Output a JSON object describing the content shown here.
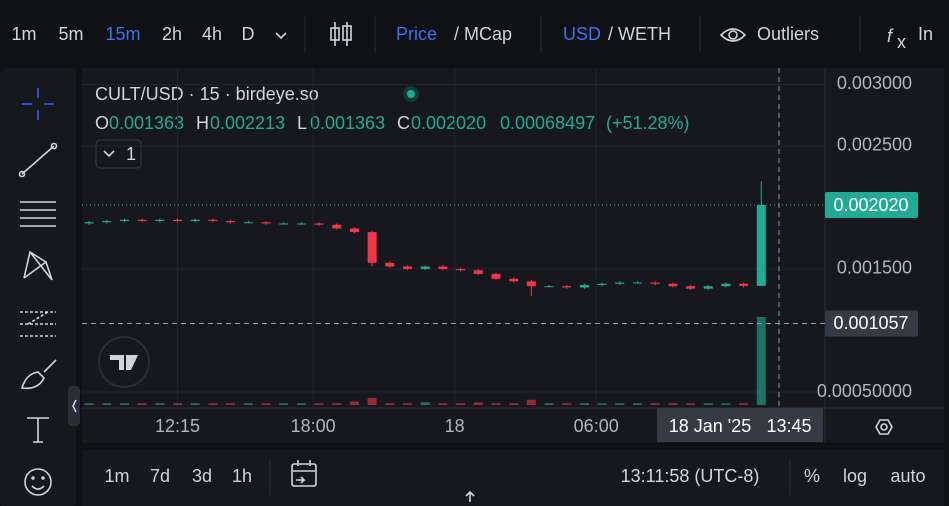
{
  "toolbar": {
    "intervals": [
      "1m",
      "5m",
      "15m",
      "2h",
      "4h",
      "D"
    ],
    "price": "Price",
    "mcap": "/ MCap",
    "usd": "USD",
    "weth": "/ WETH",
    "outliers": "Outliers",
    "indicators": "In"
  },
  "chart_data": {
    "type": "candlestick",
    "title": "CULT/USD · 15 · birdeye.so",
    "legend": {
      "o": "O",
      "open": 0.001363,
      "h": "H",
      "high": 0.002213,
      "l": "L",
      "low": 0.001363,
      "c": "C",
      "close": 0.00202,
      "close_label": "0.002020",
      "change": 0.00068497,
      "change_percent": {
        "value": 51.28,
        "label": "(+51.28%)"
      }
    },
    "collapse": "1",
    "x": [
      8.5,
      9.25,
      10,
      10.75,
      11.5,
      12.25,
      13,
      13.75,
      14.5,
      15.25,
      16,
      16.75,
      17.5,
      18.25,
      19,
      19.75,
      20.5,
      21.25,
      22,
      22.75,
      23.5,
      24.25,
      25,
      25.75,
      26.5,
      27.25,
      28,
      28.75,
      29.5,
      30.25,
      31,
      31.75,
      32.5,
      33.25,
      34,
      34.75,
      35.5,
      36.25,
      37
    ],
    "open": [
      0.00187,
      0.00188,
      0.00189,
      0.0019,
      0.00189,
      0.0019,
      0.00189,
      0.0019,
      0.00189,
      0.00188,
      0.00188,
      0.00187,
      0.00187,
      0.00187,
      0.00186,
      0.00183,
      0.0018,
      0.00155,
      0.00152,
      0.0015,
      0.00152,
      0.0015,
      0.00149,
      0.00146,
      0.00142,
      0.0014,
      0.00136,
      0.00136,
      0.00135,
      0.00137,
      0.00138,
      0.00139,
      0.00139,
      0.00138,
      0.00136,
      0.00134,
      0.00136,
      0.00138,
      0.001363
    ],
    "high": [
      0.00189,
      0.0019,
      0.00191,
      0.00191,
      0.00191,
      0.00191,
      0.00191,
      0.00191,
      0.0019,
      0.00189,
      0.00189,
      0.00188,
      0.00188,
      0.00188,
      0.00187,
      0.00184,
      0.00181,
      0.00156,
      0.00153,
      0.00153,
      0.00153,
      0.00151,
      0.0015,
      0.00147,
      0.00143,
      0.00141,
      0.00137,
      0.00137,
      0.00138,
      0.00139,
      0.0014,
      0.0014,
      0.0014,
      0.00139,
      0.00137,
      0.00137,
      0.00139,
      0.00139,
      0.002213
    ],
    "low": [
      0.00186,
      0.00187,
      0.00188,
      0.00188,
      0.00188,
      0.00188,
      0.00188,
      0.00188,
      0.00187,
      0.00187,
      0.00186,
      0.00186,
      0.00186,
      0.00185,
      0.00182,
      0.00179,
      0.00152,
      0.00151,
      0.00149,
      0.00149,
      0.00149,
      0.00148,
      0.00145,
      0.00141,
      0.00139,
      0.00128,
      0.00135,
      0.00134,
      0.00134,
      0.00136,
      0.00137,
      0.00138,
      0.00137,
      0.00135,
      0.00133,
      0.00133,
      0.00135,
      0.00135,
      0.001363
    ],
    "close": [
      0.00188,
      0.00189,
      0.0019,
      0.00189,
      0.0019,
      0.00189,
      0.0019,
      0.00189,
      0.00188,
      0.00188,
      0.00187,
      0.00187,
      0.00187,
      0.00186,
      0.00183,
      0.0018,
      0.00155,
      0.00152,
      0.0015,
      0.00152,
      0.0015,
      0.00149,
      0.00146,
      0.00142,
      0.0014,
      0.00136,
      0.00136,
      0.00135,
      0.00137,
      0.00138,
      0.00139,
      0.00139,
      0.00138,
      0.00136,
      0.00134,
      0.00136,
      0.00138,
      0.001363,
      0.00202
    ],
    "volume": [
      2,
      2,
      2,
      2,
      2,
      2,
      2,
      2,
      2,
      2,
      2,
      2,
      2,
      2,
      2,
      4,
      8,
      2,
      2,
      3,
      2,
      2,
      3,
      2,
      2,
      6,
      2,
      2,
      2,
      2,
      2,
      2,
      2,
      2,
      2,
      2,
      2,
      2,
      100
    ],
    "xlim": [
      8.2,
      39.7
    ],
    "xticks": [
      {
        "value": 12.25,
        "label": "12:15"
      },
      {
        "value": 18,
        "label": "18:00"
      },
      {
        "value": 24,
        "label": "18"
      },
      {
        "value": 30,
        "label": "06:00"
      }
    ],
    "ylim": [
      0.00037,
      0.003134
    ],
    "yticks": [
      {
        "value": 0.003,
        "label": "0.003000"
      },
      {
        "value": 0.0025,
        "label": "0.002500"
      },
      {
        "value": 0.0015,
        "label": "0.001500"
      },
      {
        "value": 0.0005,
        "label": "0.00050000"
      }
    ],
    "last_price": {
      "value": 0.00202,
      "label": "0.002020"
    },
    "crosshair": {
      "price": {
        "value": 0.001057,
        "label": "0.001057"
      },
      "date": "18 Jan '25",
      "time": {
        "value": 37.75,
        "label": "13:45"
      }
    },
    "up_color": "#22ab94",
    "down_color": "#f23645",
    "grid": true
  },
  "footer": {
    "ranges": [
      "1m",
      "7d",
      "3d",
      "1h"
    ],
    "clock": "13:11:58 (UTC-8)",
    "percent": "%",
    "log": "log",
    "auto": "auto"
  }
}
